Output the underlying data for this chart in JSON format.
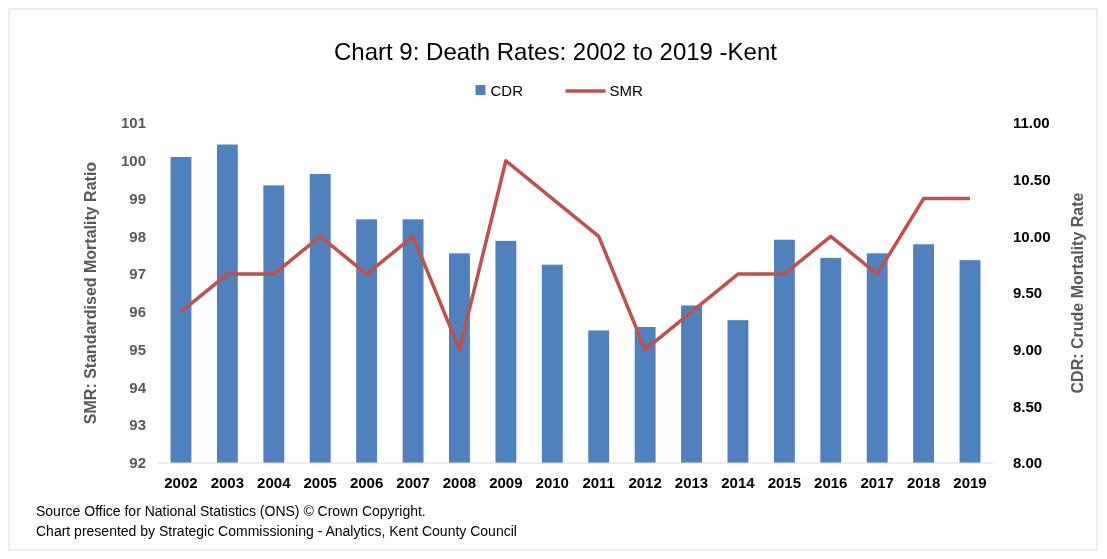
{
  "chart_data": {
    "type": "bar",
    "title": "Chart 9: Death Rates: 2002 to 2019 -Kent",
    "ylabel": "SMR: Standardised Mortality Ratio",
    "y2label": "CDR: Crude Mortality Rate",
    "categories": [
      "2002",
      "2003",
      "2004",
      "2005",
      "2006",
      "2007",
      "2008",
      "2009",
      "2010",
      "2011",
      "2012",
      "2013",
      "2014",
      "2015",
      "2016",
      "2017",
      "2018",
      "2019"
    ],
    "series": [
      {
        "name": "CDR",
        "axis": "y2",
        "color": "#4f81bd",
        "values": [
          10.7,
          10.81,
          10.45,
          10.55,
          10.15,
          10.15,
          9.85,
          9.96,
          9.75,
          9.17,
          9.2,
          9.39,
          9.26,
          9.97,
          9.81,
          9.85,
          9.93,
          9.79
        ]
      },
      {
        "name": "SMR",
        "type": "line",
        "color": "#c0504d",
        "values": [
          96,
          97,
          97,
          98,
          97,
          98,
          95,
          100,
          99,
          98,
          95,
          96,
          97,
          97,
          98,
          97,
          99,
          99
        ]
      }
    ],
    "ylim": [
      92,
      101
    ],
    "yticks": [
      92,
      93,
      94,
      95,
      96,
      97,
      98,
      99,
      100,
      101
    ],
    "y2lim": [
      8,
      11
    ],
    "y2ticks": [
      {
        "value": 8,
        "label": "8.00"
      },
      {
        "value": 8.5,
        "label": "8.50"
      },
      {
        "value": 9,
        "label": "9.00"
      },
      {
        "value": 9.5,
        "label": "9.50"
      },
      {
        "value": 10,
        "label": "10.00"
      },
      {
        "value": 10.5,
        "label": "10.50"
      },
      {
        "value": 11,
        "label": "11.00"
      }
    ],
    "legend": "top",
    "grid": false,
    "marker": "none",
    "line_style": "solid",
    "annotations": [
      "Source Office for National Statistics (ONS) © Crown Copyright.",
      "Chart presented by Strategic Commissioning - Analytics, Kent County Council"
    ]
  }
}
